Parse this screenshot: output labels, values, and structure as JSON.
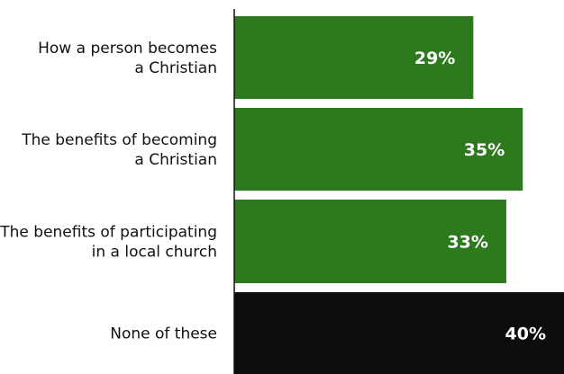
{
  "chart_data": {
    "type": "bar",
    "orientation": "horizontal",
    "categories": [
      [
        "How a person becomes",
        "a Christian"
      ],
      [
        "The benefits of becoming",
        "a Christian"
      ],
      [
        "The benefits of participating",
        "in a local church"
      ],
      [
        "None of these"
      ]
    ],
    "values": [
      29,
      35,
      33,
      40
    ],
    "value_labels": [
      "29%",
      "35%",
      "33%",
      "40%"
    ],
    "bar_colors": [
      "#2c7a1d",
      "#2c7a1d",
      "#2c7a1d",
      "#0d0d0d"
    ],
    "axis_color": "#111111",
    "title": "",
    "xlabel": "",
    "ylabel": "",
    "xlim": [
      0,
      40
    ],
    "grid": false,
    "legend": "none"
  }
}
